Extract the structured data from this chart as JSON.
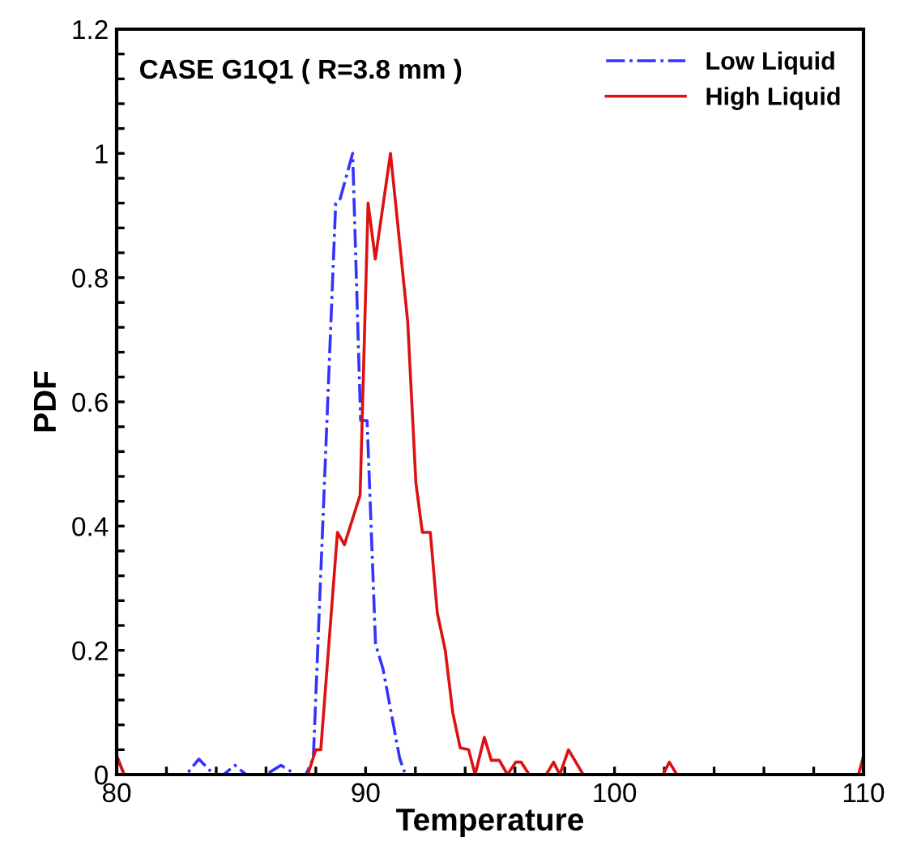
{
  "chart_data": {
    "type": "line",
    "title": "CASE G1Q1 ( R=3.8 mm )",
    "xlabel": "Temperature",
    "ylabel": "PDF",
    "xlim": [
      80,
      110
    ],
    "ylim": [
      0,
      1.2
    ],
    "xticks": [
      80,
      {
        "value": 82,
        "label": null
      },
      {
        "value": 84,
        "label": null
      },
      {
        "value": 86,
        "label": null
      },
      {
        "value": 88,
        "label": null
      },
      90,
      {
        "value": 92,
        "label": null
      },
      {
        "value": 94,
        "label": null
      },
      {
        "value": 96,
        "label": null
      },
      {
        "value": 98,
        "label": null
      },
      100,
      {
        "value": 102,
        "label": null
      },
      {
        "value": 104,
        "label": null
      },
      {
        "value": 106,
        "label": null
      },
      {
        "value": 108,
        "label": null
      },
      110
    ],
    "yticks": [
      0,
      {
        "value": 0.04,
        "label": null
      },
      {
        "value": 0.08,
        "label": null
      },
      {
        "value": 0.12,
        "label": null
      },
      {
        "value": 0.16,
        "label": null
      },
      0.2,
      {
        "value": 0.24,
        "label": null
      },
      {
        "value": 0.28,
        "label": null
      },
      {
        "value": 0.32,
        "label": null
      },
      {
        "value": 0.36,
        "label": null
      },
      0.4,
      {
        "value": 0.44,
        "label": null
      },
      {
        "value": 0.48,
        "label": null
      },
      {
        "value": 0.52,
        "label": null
      },
      {
        "value": 0.56,
        "label": null
      },
      0.6,
      {
        "value": 0.64,
        "label": null
      },
      {
        "value": 0.68,
        "label": null
      },
      {
        "value": 0.72,
        "label": null
      },
      {
        "value": 0.76,
        "label": null
      },
      0.8,
      {
        "value": 0.84,
        "label": null
      },
      {
        "value": 0.88,
        "label": null
      },
      {
        "value": 0.92,
        "label": null
      },
      {
        "value": 0.96,
        "label": null
      },
      1,
      {
        "value": 1.04,
        "label": null
      },
      {
        "value": 1.08,
        "label": null
      },
      {
        "value": 1.12,
        "label": null
      },
      {
        "value": 1.16,
        "label": null
      },
      1.2
    ],
    "grid": false,
    "legend": "top right",
    "series": [
      {
        "name": "Low Liquid",
        "color": "#3333ff",
        "line_style": "dashdot",
        "x": [
          80,
          80.3,
          82.8,
          83.3,
          83.9,
          84.3,
          84.75,
          85.2,
          86.0,
          86.6,
          87.2,
          87.6,
          87.9,
          88.8,
          88.98,
          89.3,
          89.48,
          89.8,
          90.06,
          90.4,
          90.7,
          91.37,
          91.6,
          110
        ],
        "values": [
          0.03,
          0,
          0,
          0.025,
          0,
          0,
          0.015,
          0,
          0,
          0.015,
          0,
          0,
          0.026,
          0.92,
          0.927,
          0.974,
          1.0,
          0.57,
          0.57,
          0.21,
          0.17,
          0.026,
          0,
          0
        ]
      },
      {
        "name": "High Liquid",
        "color": "#dd1111",
        "line_style": "solid",
        "x": [
          80,
          80.3,
          87.68,
          88.0,
          88.2,
          88.87,
          89.15,
          89.78,
          90.1,
          90.39,
          91.0,
          91.69,
          92.02,
          92.28,
          92.6,
          92.88,
          93.2,
          93.5,
          93.8,
          94.14,
          94.4,
          94.77,
          95.05,
          95.37,
          95.7,
          96.03,
          96.25,
          96.57,
          97.26,
          97.55,
          97.8,
          98.15,
          98.74,
          101.95,
          102.2,
          102.5,
          109.8,
          110
        ],
        "values": [
          0.03,
          0,
          0,
          0.04,
          0.04,
          0.39,
          0.37,
          0.45,
          0.92,
          0.83,
          1.0,
          0.73,
          0.47,
          0.39,
          0.39,
          0.26,
          0.2,
          0.1,
          0.043,
          0.04,
          0,
          0.06,
          0.023,
          0.023,
          0,
          0.02,
          0.02,
          0,
          0,
          0.02,
          0,
          0.04,
          0,
          0,
          0.02,
          0,
          0,
          0.03
        ]
      }
    ]
  }
}
